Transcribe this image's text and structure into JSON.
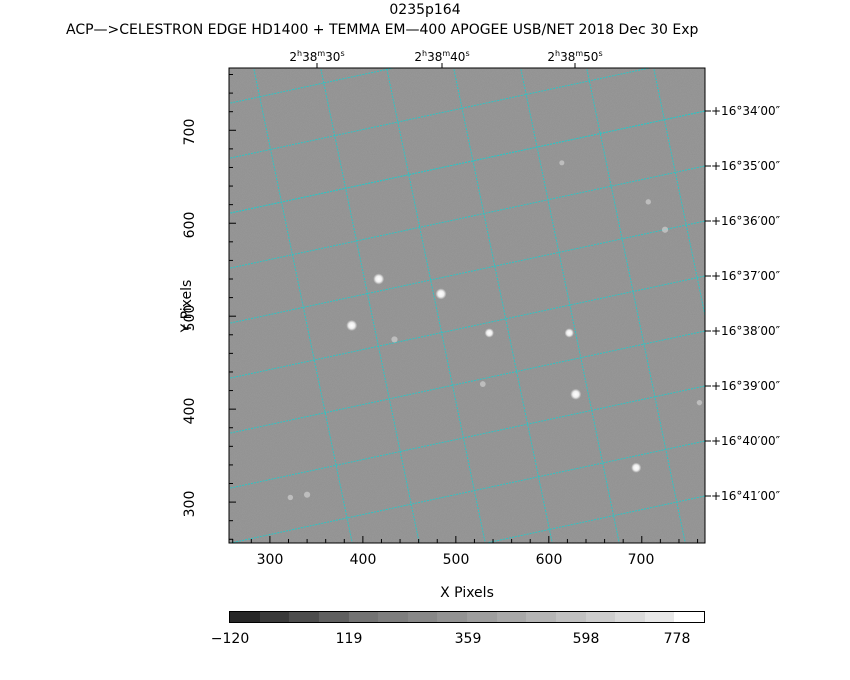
{
  "header": {
    "title": "0235p164",
    "subtitle": "ACP—>CELESTRON EDGE HD1400 + TEMMA EM—400 APOGEE USB/NET   2018 Dec 30    Exp"
  },
  "axes": {
    "xlabel": "X Pixels",
    "ylabel": "Y Pixels",
    "xticks": [
      "300",
      "400",
      "500",
      "600",
      "700"
    ],
    "yticks": [
      "300",
      "400",
      "500",
      "600",
      "700"
    ],
    "ra_labels": [
      {
        "h": "2",
        "m": "38",
        "s": "30"
      },
      {
        "h": "2",
        "m": "38",
        "s": "40"
      },
      {
        "h": "2",
        "m": "38",
        "s": "50"
      }
    ],
    "dec_labels": [
      "+16°34′00″",
      "+16°35′00″",
      "+16°36′00″",
      "+16°37′00″",
      "+16°38′00″",
      "+16°39′00″",
      "+16°40′00″",
      "+16°41′00″"
    ]
  },
  "colorbar": {
    "labels": [
      "−120",
      "119",
      "359",
      "598",
      "778"
    ],
    "colors": [
      "#272727",
      "#3a3a3a",
      "#4d4d4d",
      "#606060",
      "#737373",
      "#7e7e7e",
      "#888888",
      "#939393",
      "#9e9e9e",
      "#a9a9a9",
      "#b5b5b5",
      "#c1c1c1",
      "#cdcdcd",
      "#dadada",
      "#e8e8e8",
      "#ffffff"
    ]
  },
  "image": {
    "background": "#8c8c8c",
    "grid_color": "#2ec4c4",
    "stars": [
      {
        "x": 417,
        "y": 540,
        "brightness": 1.0
      },
      {
        "x": 484,
        "y": 524,
        "brightness": 1.0
      },
      {
        "x": 388,
        "y": 490,
        "brightness": 1.0
      },
      {
        "x": 536,
        "y": 482,
        "brightness": 0.8
      },
      {
        "x": 622,
        "y": 482,
        "brightness": 0.8
      },
      {
        "x": 629,
        "y": 416,
        "brightness": 1.0
      },
      {
        "x": 694,
        "y": 337,
        "brightness": 0.9
      },
      {
        "x": 434,
        "y": 475,
        "brightness": 0.4
      },
      {
        "x": 529,
        "y": 427,
        "brightness": 0.35
      },
      {
        "x": 340,
        "y": 308,
        "brightness": 0.4
      },
      {
        "x": 322,
        "y": 305,
        "brightness": 0.3
      },
      {
        "x": 725,
        "y": 593,
        "brightness": 0.4
      },
      {
        "x": 707,
        "y": 623,
        "brightness": 0.3
      },
      {
        "x": 614,
        "y": 665,
        "brightness": 0.25
      },
      {
        "x": 762,
        "y": 407,
        "brightness": 0.3
      }
    ]
  }
}
